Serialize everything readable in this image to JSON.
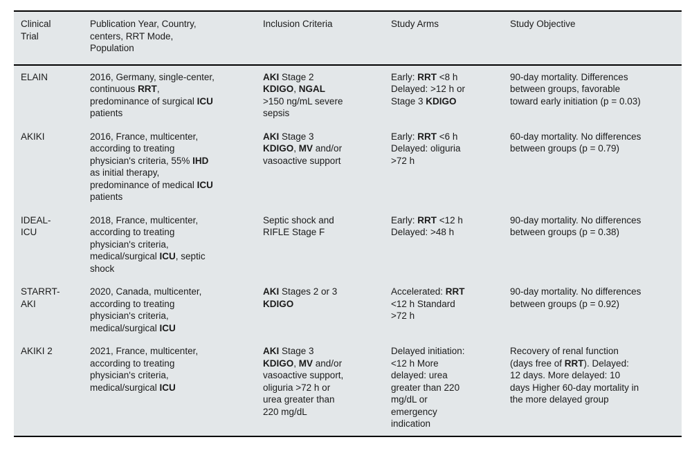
{
  "table": {
    "columns": [
      "Clinical Trial",
      "Publication Year, Country, centers, RRT Mode, Population",
      "Inclusion Criteria",
      "Study Arms",
      "Study Objective"
    ],
    "rows": [
      {
        "trial": "ELAIN",
        "publication": "2016, Germany, single-center, continuous **RRT**, predominance of surgical **ICU** patients",
        "inclusion": "**AKI** Stage 2 **KDIGO**, **NGAL** >150 ng/mL severe sepsis",
        "arms": "Early: **RRT** <8 h Delayed: >12 h or Stage 3 **KDIGO**",
        "objective": "90-day mortality. Differences between groups, favorable toward early initiation (p = 0.03)"
      },
      {
        "trial": "AKIKI",
        "publication": "2016, France, multicenter, according to treating physician's criteria, 55% **IHD** as initial therapy, predominance of medical **ICU** patients",
        "inclusion": "**AKI** Stage 3 **KDIGO**, **MV** and/or vasoactive support",
        "arms": "Early: **RRT** <6 h Delayed: oliguria >72 h",
        "objective": "60-day mortality. No differences between groups (p = 0.79)"
      },
      {
        "trial": "IDEAL-ICU",
        "publication": "2018, France, multicenter, according to treating physician's criteria, medical/surgical **ICU**, septic shock",
        "inclusion": "Septic shock and RIFLE Stage F",
        "arms": "Early: **RRT** <12 h Delayed: >48 h",
        "objective": "90-day mortality. No differences between groups (p = 0.38)"
      },
      {
        "trial": "STARRT-AKI",
        "publication": "2020, Canada, multicenter, according to treating physician's criteria, medical/surgical **ICU**",
        "inclusion": "**AKI** Stages 2 or 3 **KDIGO**",
        "arms": "Accelerated: **RRT** <12 h Standard >72 h",
        "objective": "90-day mortality. No differences between groups (p = 0.92)"
      },
      {
        "trial": "AKIKI 2",
        "publication": "2021, France, multicenter, according to treating physician's criteria, medical/surgical **ICU**",
        "inclusion": "**AKI** Stage 3 **KDIGO**, **MV** and/or vasoactive support, oliguria >72 h or urea greater than 220 mg/dL",
        "arms": "Delayed initiation: <12 h More delayed: urea greater than 220 mg/dL or emergency indication",
        "objective": "Recovery of renal function (days free of **RRT**). Delayed: 12 days. More delayed: 10 days Higher 60-day mortality in the more delayed group"
      }
    ],
    "colors": {
      "table_background": "#e3e7e9",
      "border": "#000000",
      "text": "#1b1b1b"
    }
  }
}
